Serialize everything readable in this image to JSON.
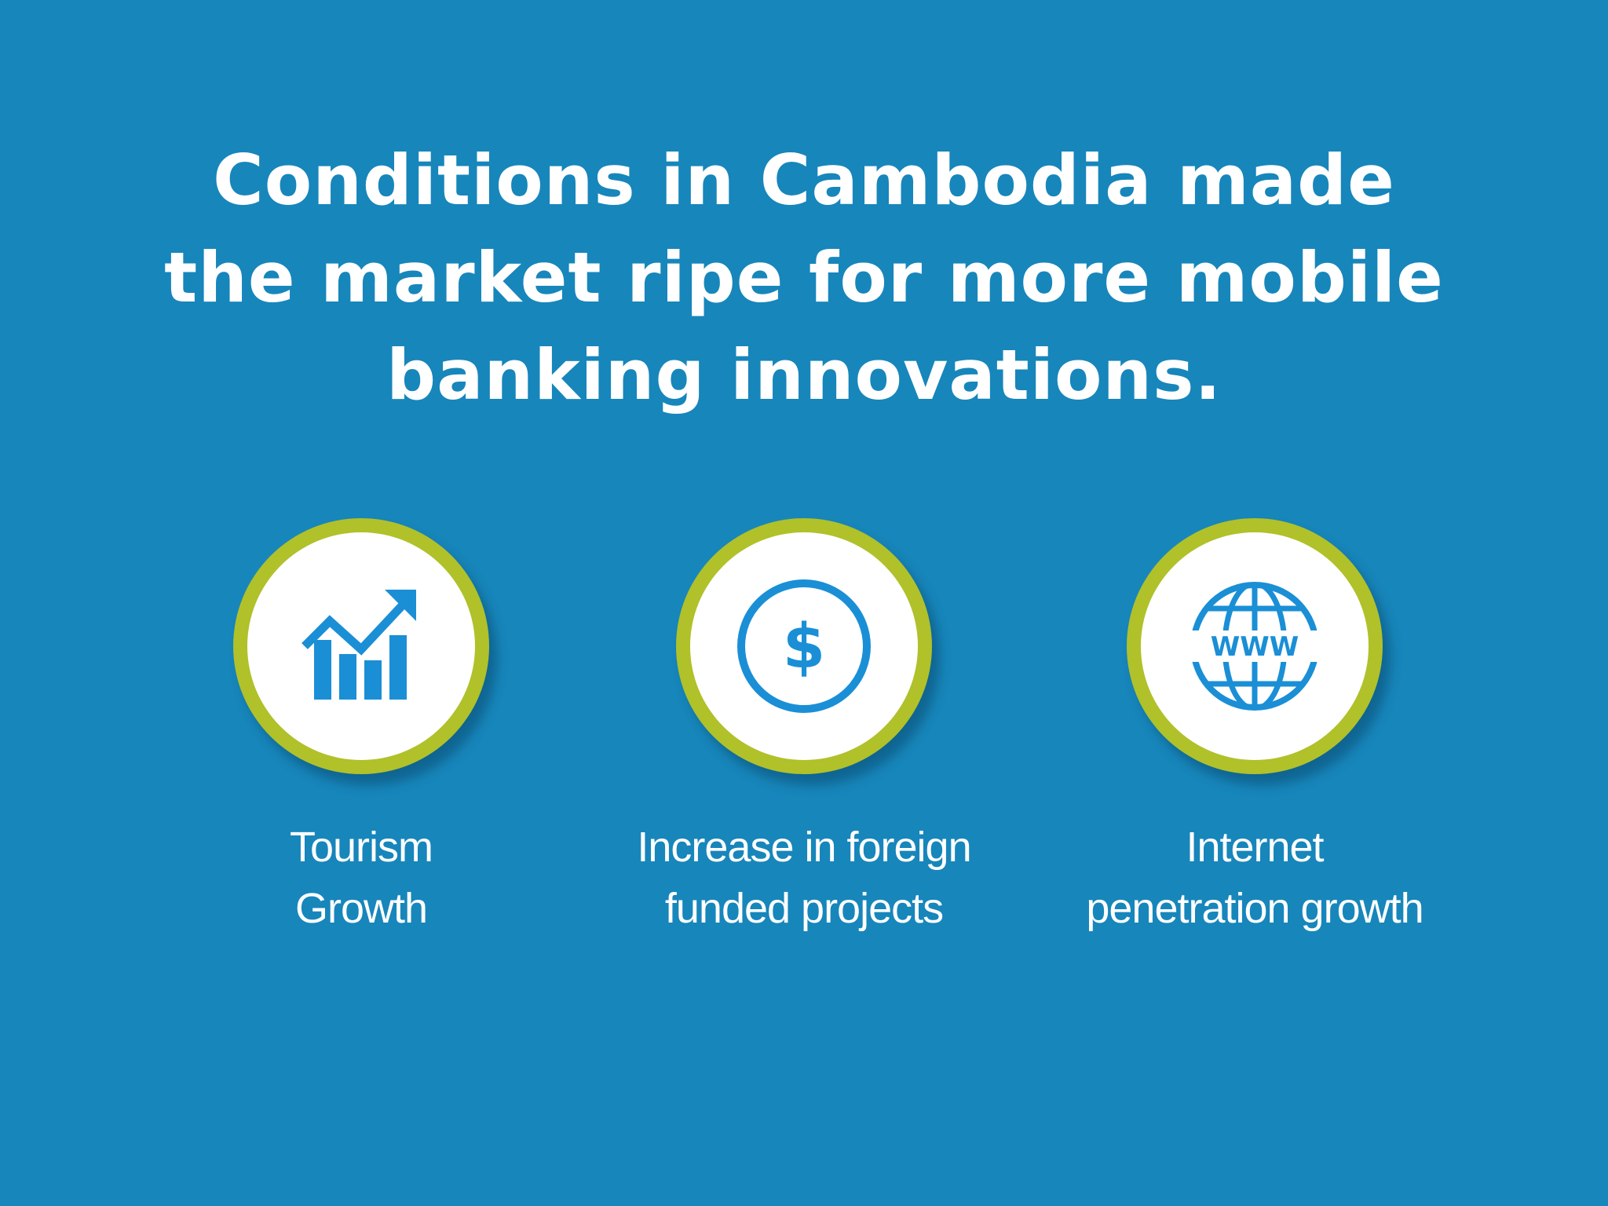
{
  "headline": {
    "lines": [
      "Conditions in Cambodia made",
      "the market ripe for more mobile",
      "banking innovations."
    ]
  },
  "features": [
    {
      "icon": "growth-chart-icon",
      "label_lines": [
        "Tourism",
        "Growth"
      ]
    },
    {
      "icon": "dollar-coin-icon",
      "label_lines": [
        "Increase in foreign",
        "funded projects"
      ]
    },
    {
      "icon": "www-globe-icon",
      "icon_text": "WWW",
      "label_lines": [
        "Internet",
        "penetration growth"
      ]
    }
  ],
  "colors": {
    "background": "#1786bb",
    "ring": "#b0c12a",
    "icon": "#1a8fd6",
    "text": "#ffffff"
  }
}
